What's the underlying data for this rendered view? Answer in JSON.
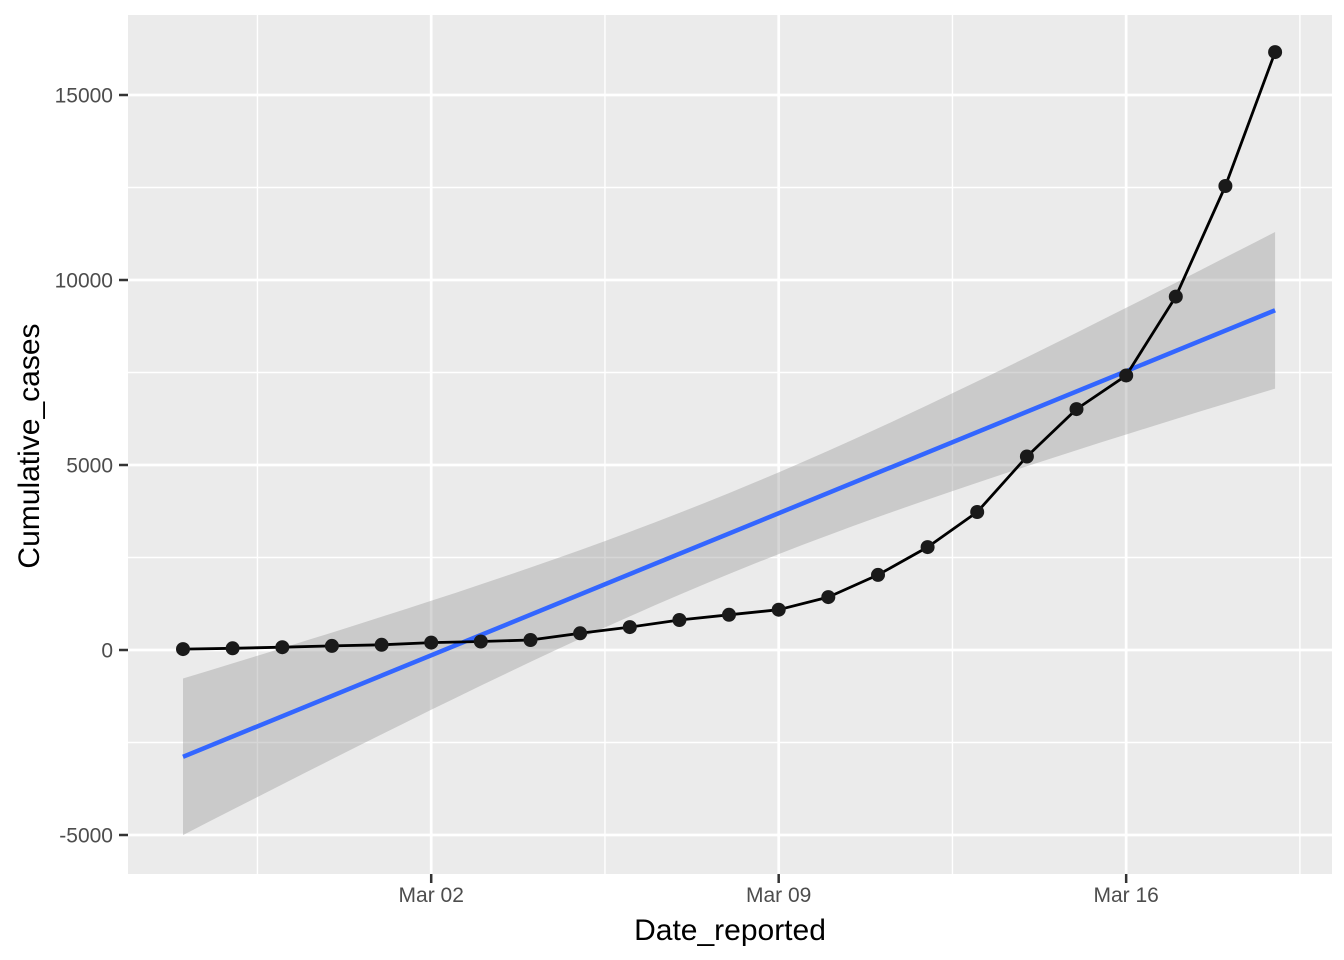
{
  "figure": {
    "kind": "ggplot2-style scatter/line plot with linear smooth and confidence ribbon",
    "background": "#FFFFFF"
  },
  "chart_data": {
    "type": "line",
    "title": "",
    "xlabel": "Date_reported",
    "ylabel": "Cumulative_cases",
    "legend": "none",
    "grid": "on",
    "x_tick_labels": [
      "Mar 02",
      "Mar 09",
      "Mar 16"
    ],
    "y_tick_labels": [
      "-5000",
      "0",
      "5000",
      "10000",
      "15000"
    ],
    "ylim": [
      -6050,
      17200
    ],
    "xlim_days": [
      -1.1,
      23.1
    ],
    "points": [
      {
        "date": "Feb 26",
        "day": 0,
        "value": 25
      },
      {
        "date": "Feb 27",
        "day": 1,
        "value": 45
      },
      {
        "date": "Feb 28",
        "day": 2,
        "value": 75
      },
      {
        "date": "Feb 29",
        "day": 3,
        "value": 110
      },
      {
        "date": "Mar 01",
        "day": 4,
        "value": 140
      },
      {
        "date": "Mar 02",
        "day": 5,
        "value": 200
      },
      {
        "date": "Mar 03",
        "day": 6,
        "value": 230
      },
      {
        "date": "Mar 04",
        "day": 7,
        "value": 270
      },
      {
        "date": "Mar 05",
        "day": 8,
        "value": 450
      },
      {
        "date": "Mar 06",
        "day": 9,
        "value": 620
      },
      {
        "date": "Mar 07",
        "day": 10,
        "value": 810
      },
      {
        "date": "Mar 08",
        "day": 11,
        "value": 950
      },
      {
        "date": "Mar 09",
        "day": 12,
        "value": 1090
      },
      {
        "date": "Mar 10",
        "day": 13,
        "value": 1430
      },
      {
        "date": "Mar 11",
        "day": 14,
        "value": 2030
      },
      {
        "date": "Mar 12",
        "day": 15,
        "value": 2780
      },
      {
        "date": "Mar 13",
        "day": 16,
        "value": 3730
      },
      {
        "date": "Mar 14",
        "day": 17,
        "value": 5230
      },
      {
        "date": "Mar 15",
        "day": 18,
        "value": 6510
      },
      {
        "date": "Mar 16",
        "day": 19,
        "value": 7420
      },
      {
        "date": "Mar 17",
        "day": 20,
        "value": 9550
      },
      {
        "date": "Mar 18",
        "day": 21,
        "value": 12540
      },
      {
        "date": "Mar 19",
        "day": 22,
        "value": 16160
      }
    ],
    "x_ticks": [
      {
        "day": 5,
        "label": "Mar 02"
      },
      {
        "day": 12,
        "label": "Mar 09"
      },
      {
        "day": 19,
        "label": "Mar 16"
      }
    ],
    "x_minor_days": [
      1.5,
      8.5,
      15.5,
      22.5
    ],
    "y_ticks": [
      {
        "value": -5000,
        "label": "-5000"
      },
      {
        "value": 0,
        "label": "0"
      },
      {
        "value": 5000,
        "label": "5000"
      },
      {
        "value": 10000,
        "label": "10000"
      },
      {
        "value": 15000,
        "label": "15000"
      }
    ],
    "y_minor_values": [
      -2500,
      2500,
      7500,
      12500
    ],
    "smooth": {
      "method": "lm",
      "se": true,
      "level": 0.95,
      "line_start_value": -2890,
      "line_end_value": 9180
    }
  },
  "colors": {
    "panel_bg": "#EBEBEB",
    "grid": "#FFFFFF",
    "series_line": "#000000",
    "series_point": "#1A1A1A",
    "smooth_line": "#3366FF",
    "ribbon": "#999999",
    "ribbon_opacity": "0.4",
    "tick_label": "#4D4D4D",
    "axis_title": "#000000",
    "tick_mark": "#333333"
  }
}
